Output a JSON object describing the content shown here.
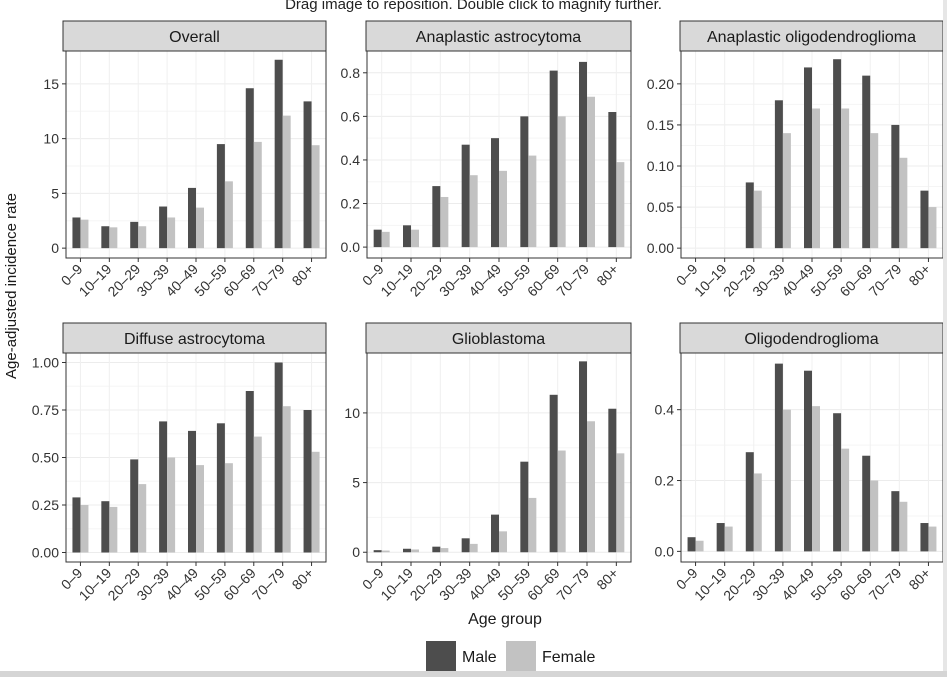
{
  "viewer": {
    "hint": "Drag image to reposition. Double click to magnify further."
  },
  "chart_data": {
    "type": "bar",
    "ylabel": "Age-adjusted incidence rate",
    "xlabel": "Age group",
    "legend": {
      "placement": "bottom",
      "entries": [
        {
          "name": "Male",
          "color": "#4d4d4d"
        },
        {
          "name": "Female",
          "color": "#c2c2c2"
        }
      ]
    },
    "categories": [
      "0–9",
      "10–19",
      "20–29",
      "30–39",
      "40–49",
      "50–59",
      "60–69",
      "70–79",
      "80+"
    ],
    "panels": [
      {
        "title": "Overall",
        "ylim": [
          -0.9,
          18
        ],
        "ticks": [
          0,
          5,
          10,
          15
        ],
        "tick_labels": [
          "0",
          "5",
          "10",
          "15"
        ],
        "series": [
          {
            "name": "Male",
            "values": [
              2.8,
              2.0,
              2.4,
              3.8,
              5.5,
              9.5,
              14.6,
              17.2,
              13.4
            ]
          },
          {
            "name": "Female",
            "values": [
              2.6,
              1.9,
              2.0,
              2.8,
              3.7,
              6.1,
              9.7,
              12.1,
              9.4
            ]
          }
        ]
      },
      {
        "title": "Anaplastic astrocytoma",
        "ylim": [
          -0.05,
          0.9
        ],
        "ticks": [
          0.0,
          0.2,
          0.4,
          0.6,
          0.8
        ],
        "tick_labels": [
          "0.0",
          "0.2",
          "0.4",
          "0.6",
          "0.8"
        ],
        "series": [
          {
            "name": "Male",
            "values": [
              0.08,
              0.1,
              0.28,
              0.47,
              0.5,
              0.6,
              0.81,
              0.85,
              0.62
            ]
          },
          {
            "name": "Female",
            "values": [
              0.07,
              0.08,
              0.23,
              0.33,
              0.35,
              0.42,
              0.6,
              0.69,
              0.39
            ]
          }
        ]
      },
      {
        "title": "Anaplastic oligodendroglioma",
        "ylim": [
          -0.012,
          0.24
        ],
        "ticks": [
          0.0,
          0.05,
          0.1,
          0.15,
          0.2
        ],
        "tick_labels": [
          "0.00",
          "0.05",
          "0.10",
          "0.15",
          "0.20"
        ],
        "series": [
          {
            "name": "Male",
            "values": [
              0,
              0,
              0.08,
              0.18,
              0.22,
              0.23,
              0.21,
              0.15,
              0.07
            ]
          },
          {
            "name": "Female",
            "values": [
              0,
              0,
              0.07,
              0.14,
              0.17,
              0.17,
              0.14,
              0.11,
              0.05
            ]
          }
        ]
      },
      {
        "title": "Diffuse astrocytoma",
        "ylim": [
          -0.05,
          1.05
        ],
        "ticks": [
          0.0,
          0.25,
          0.5,
          0.75,
          1.0
        ],
        "tick_labels": [
          "0.00",
          "0.25",
          "0.50",
          "0.75",
          "1.00"
        ],
        "series": [
          {
            "name": "Male",
            "values": [
              0.29,
              0.27,
              0.49,
              0.69,
              0.64,
              0.68,
              0.85,
              1.0,
              0.75
            ]
          },
          {
            "name": "Female",
            "values": [
              0.25,
              0.24,
              0.36,
              0.5,
              0.46,
              0.47,
              0.61,
              0.77,
              0.53
            ]
          }
        ]
      },
      {
        "title": "Glioblastoma",
        "ylim": [
          -0.7,
          14.3
        ],
        "ticks": [
          0,
          5,
          10
        ],
        "tick_labels": [
          "0",
          "5",
          "10"
        ],
        "series": [
          {
            "name": "Male",
            "values": [
              0.15,
              0.25,
              0.4,
              1.0,
              2.7,
              6.5,
              11.3,
              13.7,
              10.3
            ]
          },
          {
            "name": "Female",
            "values": [
              0.12,
              0.2,
              0.3,
              0.6,
              1.5,
              3.9,
              7.3,
              9.4,
              7.1
            ]
          }
        ]
      },
      {
        "title": "Oligodendroglioma",
        "ylim": [
          -0.03,
          0.56
        ],
        "ticks": [
          0.0,
          0.2,
          0.4
        ],
        "tick_labels": [
          "0.0",
          "0.2",
          "0.4"
        ],
        "series": [
          {
            "name": "Male",
            "values": [
              0.04,
              0.08,
              0.28,
              0.53,
              0.51,
              0.39,
              0.27,
              0.17,
              0.08
            ]
          },
          {
            "name": "Female",
            "values": [
              0.03,
              0.07,
              0.22,
              0.4,
              0.41,
              0.29,
              0.2,
              0.14,
              0.07
            ]
          }
        ]
      }
    ]
  }
}
